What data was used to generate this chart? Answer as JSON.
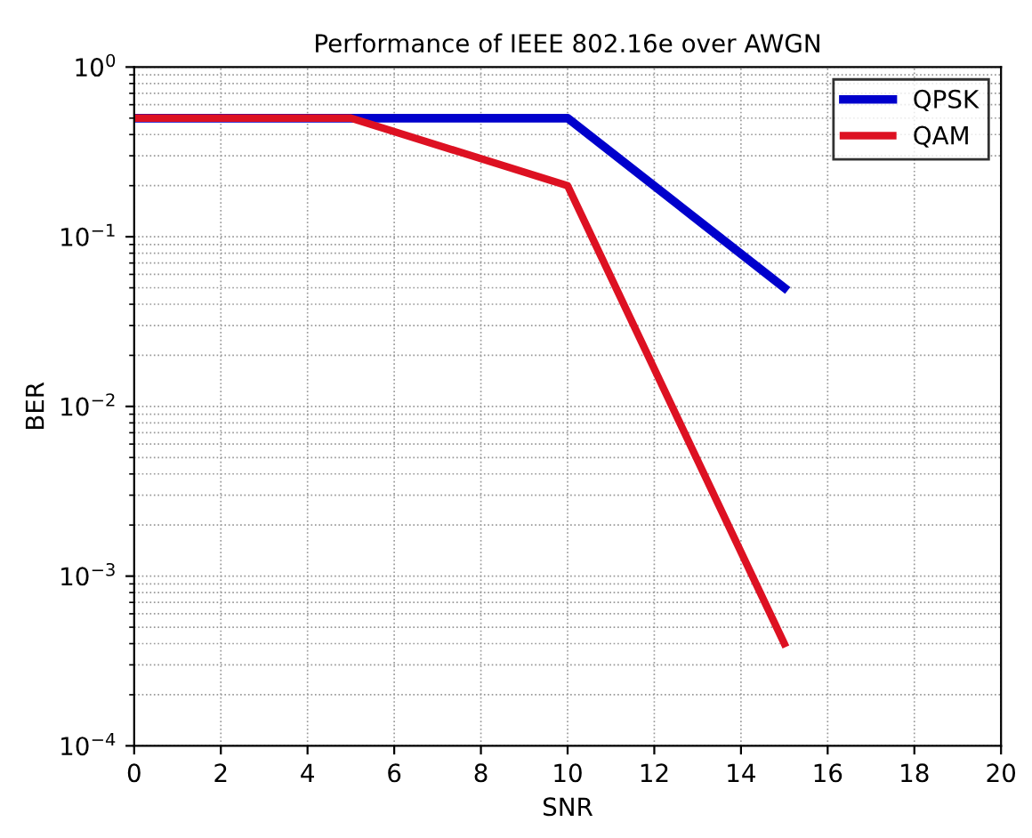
{
  "chart_data": {
    "type": "line",
    "title": "Performance of IEEE 802.16e over AWGN",
    "xlabel": "SNR",
    "ylabel": "BER",
    "x": [
      0,
      5,
      10,
      15
    ],
    "series": [
      {
        "name": "QPSK",
        "color": "#0000cc",
        "values": [
          0.5,
          0.5,
          0.5,
          0.05
        ]
      },
      {
        "name": "QAM",
        "color": "#dd1122",
        "values": [
          0.5,
          0.5,
          0.2,
          0.0004
        ]
      }
    ],
    "log": "y",
    "xlim": [
      0,
      20
    ],
    "xticks": [
      0,
      2,
      4,
      6,
      8,
      10,
      12,
      14,
      16,
      18,
      20
    ],
    "ylim": [
      0.0001,
      1
    ],
    "yticks": [
      {
        "value": 0.0001,
        "label": "10$^{−4}$"
      },
      {
        "value": 0.001,
        "label": "10$^{−3}$"
      },
      {
        "value": 0.01,
        "label": "10$^{−2}$"
      },
      {
        "value": 0.1,
        "label": "10$^{−1}$"
      },
      {
        "value": 1,
        "label": "10$^{0}$"
      }
    ],
    "grid": true,
    "legend": "top right",
    "marker": "none",
    "line_style": "solid"
  }
}
